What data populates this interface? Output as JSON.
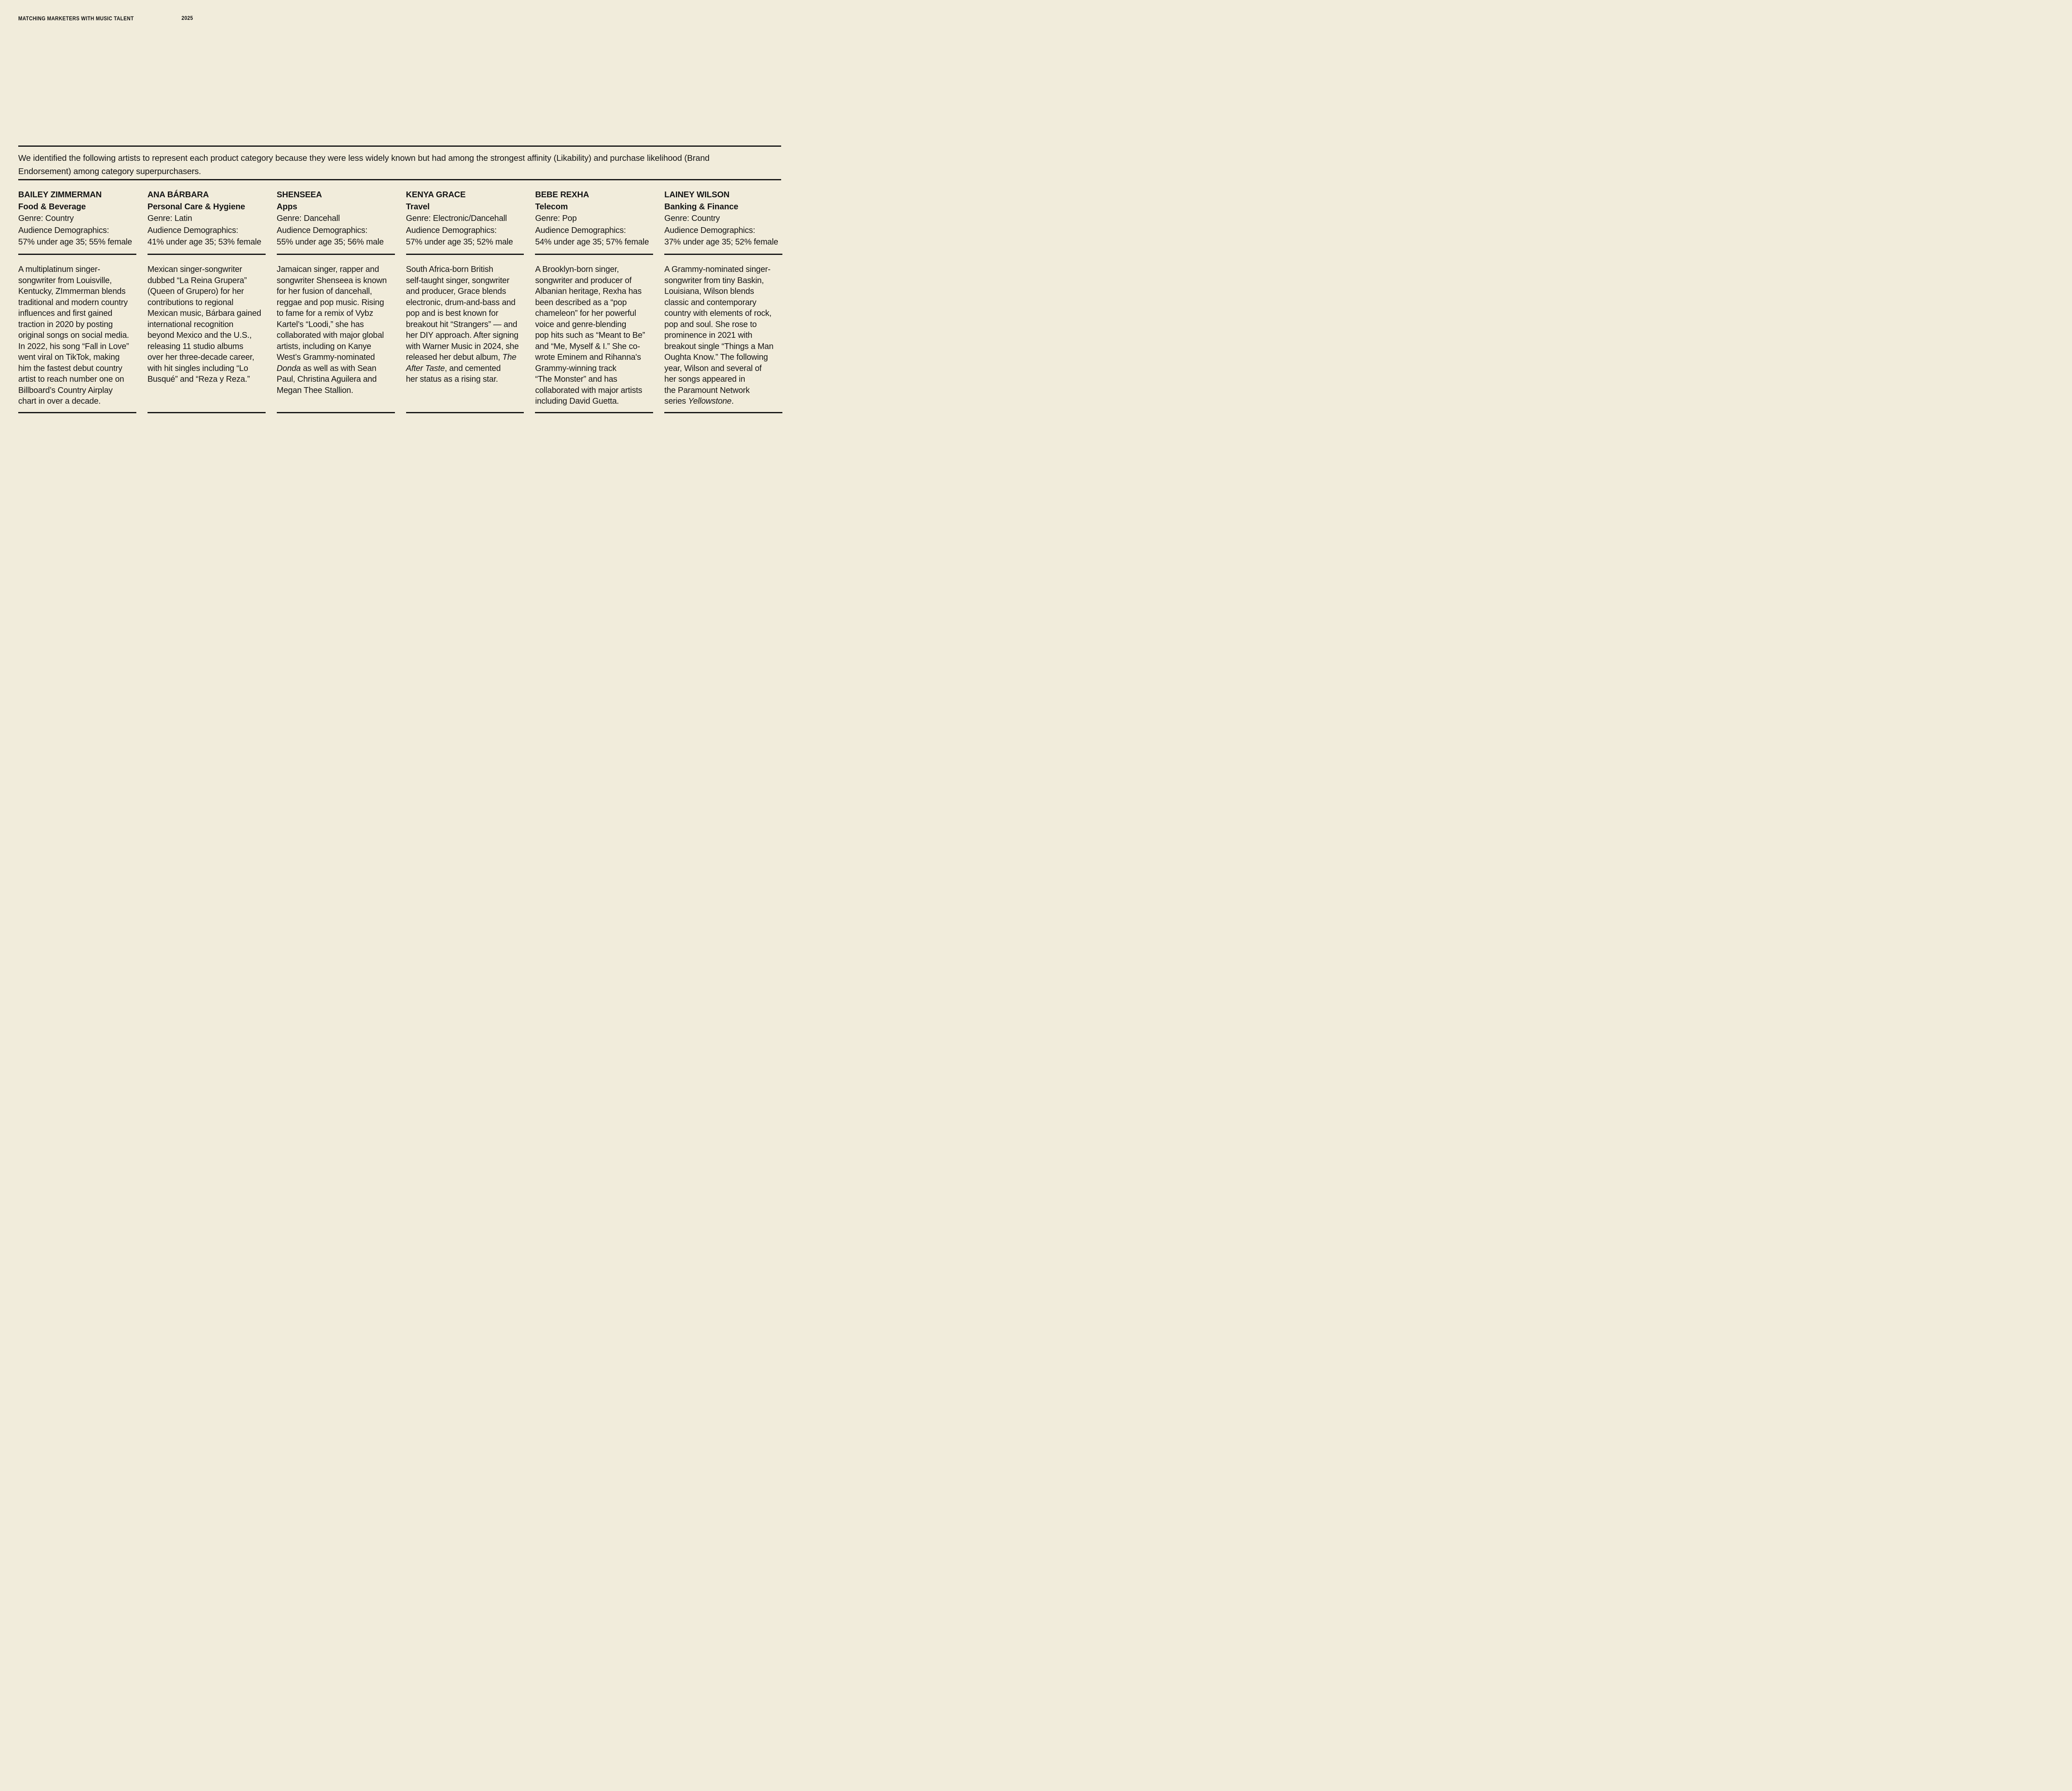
{
  "theme": {
    "background": "#f1ecdb",
    "ink": "#141414"
  },
  "masthead": {
    "title": "MATCHING MARKETERS WITH MUSIC TALENT",
    "year": "2025"
  },
  "intro": "We identified the following artists to represent each product category because they were less widely known but had among the strongest affinity (Likability) and purchase likelihood (Brand\nEndorsement) among category superpurchasers.",
  "cards": [
    {
      "name": "BAILEY ZIMMERMAN",
      "category": "Food & Beverage",
      "genre": "Genre: Country",
      "audience_label": "Audience Demographics:",
      "audience_value": "57% under age 35; 55% female",
      "bio": [
        {
          "t": "A multiplatinum singer-\nsongwriter from Louisville,\nKentucky, ZImmerman blends\ntraditional and modern country\ninfluences and first gained\ntraction in 2020 by posting\noriginal songs on social media.\nIn 2022, his song “Fall in Love”\nwent viral on TikTok, making\nhim the fastest debut country\nartist to reach number one on\nBillboard’s Country Airplay\nchart in over a decade."
        }
      ]
    },
    {
      "name": "ANA BÁRBARA",
      "category": "Personal Care & Hygiene",
      "genre": "Genre: Latin",
      "audience_label": "Audience Demographics:",
      "audience_value": "41% under age 35; 53% female",
      "bio": [
        {
          "t": "Mexican singer-songwriter\ndubbed “La Reina Grupera”\n(Queen of Grupero) for her\ncontributions to regional\nMexican music, Bárbara gained\ninternational recognition\nbeyond Mexico and the U.S.,\nreleasing 11 studio albums\nover her three-decade career,\nwith hit singles including “Lo\nBusqué” and “Reza y Reza.”"
        }
      ]
    },
    {
      "name": "SHENSEEA",
      "category": "Apps",
      "genre": "Genre: Dancehall",
      "audience_label": "Audience Demographics:",
      "audience_value": "55% under age 35; 56% male",
      "bio": [
        {
          "t": "Jamaican singer, rapper and\nsongwriter Shenseea is known\nfor her fusion of dancehall,\nreggae and pop music. Rising\nto fame for a remix of Vybz\nKartel’s “Loodi,” she has\ncollaborated with major global\nartists, including on Kanye\nWest’s Grammy-nominated\n"
        },
        {
          "t": "Donda",
          "i": true
        },
        {
          "t": " as well as with Sean\nPaul, Christina Aguilera and\nMegan Thee Stallion."
        }
      ]
    },
    {
      "name": "KENYA GRACE",
      "category": "Travel",
      "genre": "Genre: Electronic/Dancehall",
      "audience_label": "Audience Demographics:",
      "audience_value": "57% under age 35; 52% male",
      "bio": [
        {
          "t": "South Africa-born British\nself-taught singer, songwriter\nand producer, Grace blends\nelectronic, drum-and-bass and\npop and is best known for\nbreakout hit “Strangers” — and\nher DIY approach. After signing\nwith Warner Music in 2024, she\nreleased her debut album, "
        },
        {
          "t": "The\nAfter Taste",
          "i": true
        },
        {
          "t": ", and cemented\nher status as a rising star."
        }
      ]
    },
    {
      "name": "BEBE REXHA",
      "category": "Telecom",
      "genre": "Genre: Pop",
      "audience_label": "Audience Demographics:",
      "audience_value": "54% under age 35; 57% female",
      "bio": [
        {
          "t": "A Brooklyn-born singer,\nsongwriter and producer of\nAlbanian heritage, Rexha has\nbeen described as a “pop\nchameleon” for her powerful\nvoice and genre-blending\npop hits such as “Meant to Be”\nand “Me, Myself & I.” She co-\nwrote Eminem and Rihanna's\nGrammy-winning track\n“The Monster” and has\ncollaborated with major artists\nincluding David Guetta."
        }
      ]
    },
    {
      "name": "LAINEY WILSON",
      "category": "Banking & Finance",
      "genre": "Genre: Country",
      "audience_label": "Audience Demographics:",
      "audience_value": "37% under age 35; 52% female",
      "bio": [
        {
          "t": "A Grammy-nominated singer-\nsongwriter from tiny Baskin,\nLouisiana, Wilson blends\nclassic and contemporary\ncountry with elements of rock,\npop and soul. She rose to\nprominence in 2021 with\nbreakout single “Things a Man\nOughta Know.” The following\nyear, Wilson and several of\nher songs appeared in\nthe Paramount Network\nseries "
        },
        {
          "t": "Yellowstone",
          "i": true
        },
        {
          "t": "."
        }
      ]
    }
  ]
}
